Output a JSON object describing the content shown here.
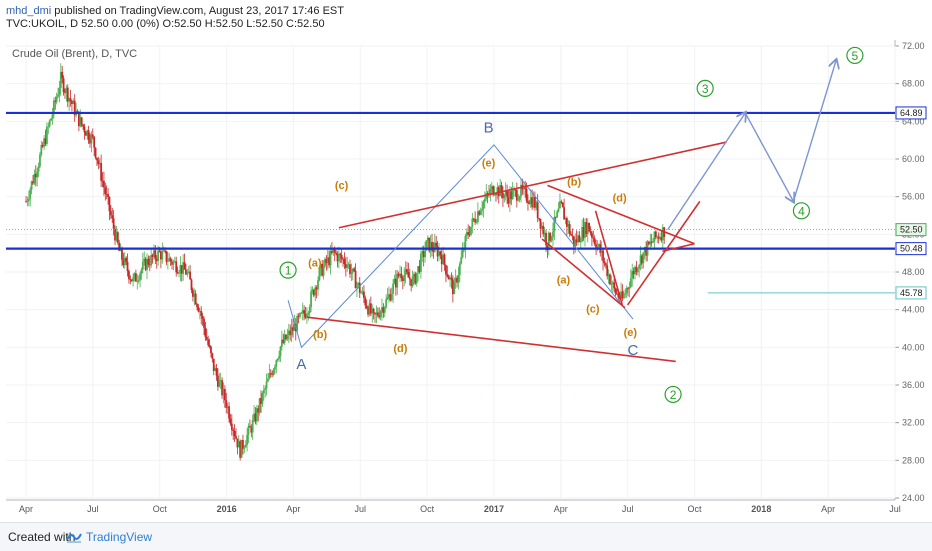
{
  "header": {
    "author": "mhd_dmi",
    "published": " published on TradingView.com, August 23, 2017 17:46 EST",
    "symbol_line": "TVC:UKOIL, D  52.50 0.00 (0%) O:52.50 H:52.50 L:52.50 C:52.50"
  },
  "footer": {
    "created_with": "Created with",
    "brand": "TradingView"
  },
  "colors": {
    "up": "#4caf50",
    "down": "#c62828",
    "hline": "#1a2fd6",
    "trend": "#d32f2f",
    "wave_blue": "#7f95d1",
    "label_orange": "#c87d0b",
    "label_green": "#2ca02c",
    "label_blue": "#4a6aa8",
    "teal": "#66c2c2"
  },
  "chart_data": {
    "type": "candlestick",
    "title": "Crude Oil (Brent), D, TVC",
    "ylim": [
      24,
      72
    ],
    "y_ticks": [
      "72.00",
      "68.00",
      "64.00",
      "60.00",
      "56.00",
      "52.00",
      "48.00",
      "44.00",
      "40.00",
      "36.00",
      "32.00",
      "28.00",
      "24.00"
    ],
    "x_ticks": [
      "Apr",
      "Jul",
      "Oct",
      "2016",
      "Apr",
      "Jul",
      "Oct",
      "2017",
      "Apr",
      "Jul",
      "Oct",
      "2018",
      "Apr",
      "Jul"
    ],
    "price_path": [
      {
        "t": 2015.25,
        "v": 55.5
      },
      {
        "t": 2015.3,
        "v": 60
      },
      {
        "t": 2015.35,
        "v": 65
      },
      {
        "t": 2015.38,
        "v": 68.5
      },
      {
        "t": 2015.42,
        "v": 66
      },
      {
        "t": 2015.45,
        "v": 64
      },
      {
        "t": 2015.5,
        "v": 62
      },
      {
        "t": 2015.55,
        "v": 56
      },
      {
        "t": 2015.6,
        "v": 50
      },
      {
        "t": 2015.65,
        "v": 47
      },
      {
        "t": 2015.7,
        "v": 49
      },
      {
        "t": 2015.75,
        "v": 50
      },
      {
        "t": 2015.8,
        "v": 49
      },
      {
        "t": 2015.85,
        "v": 48
      },
      {
        "t": 2015.9,
        "v": 44
      },
      {
        "t": 2015.95,
        "v": 38
      },
      {
        "t": 2016.0,
        "v": 34
      },
      {
        "t": 2016.05,
        "v": 29
      },
      {
        "t": 2016.1,
        "v": 32
      },
      {
        "t": 2016.15,
        "v": 36
      },
      {
        "t": 2016.2,
        "v": 40
      },
      {
        "t": 2016.25,
        "v": 42
      },
      {
        "t": 2016.3,
        "v": 44
      },
      {
        "t": 2016.35,
        "v": 48
      },
      {
        "t": 2016.4,
        "v": 50
      },
      {
        "t": 2016.45,
        "v": 49
      },
      {
        "t": 2016.5,
        "v": 46
      },
      {
        "t": 2016.55,
        "v": 43
      },
      {
        "t": 2016.6,
        "v": 45
      },
      {
        "t": 2016.65,
        "v": 48
      },
      {
        "t": 2016.7,
        "v": 47
      },
      {
        "t": 2016.75,
        "v": 51
      },
      {
        "t": 2016.8,
        "v": 50
      },
      {
        "t": 2016.85,
        "v": 46
      },
      {
        "t": 2016.9,
        "v": 52
      },
      {
        "t": 2016.95,
        "v": 55
      },
      {
        "t": 2017.0,
        "v": 57
      },
      {
        "t": 2017.05,
        "v": 56
      },
      {
        "t": 2017.1,
        "v": 56.5
      },
      {
        "t": 2017.15,
        "v": 55.5
      },
      {
        "t": 2017.2,
        "v": 51
      },
      {
        "t": 2017.25,
        "v": 55
      },
      {
        "t": 2017.3,
        "v": 51
      },
      {
        "t": 2017.35,
        "v": 53
      },
      {
        "t": 2017.4,
        "v": 50
      },
      {
        "t": 2017.45,
        "v": 46
      },
      {
        "t": 2017.48,
        "v": 45
      },
      {
        "t": 2017.52,
        "v": 48
      },
      {
        "t": 2017.56,
        "v": 50
      },
      {
        "t": 2017.6,
        "v": 51.5
      },
      {
        "t": 2017.64,
        "v": 52.5
      }
    ],
    "horizontal_lines": [
      {
        "value": 64.89,
        "label": "64.89",
        "color": "#1a2fd6"
      },
      {
        "value": 50.48,
        "label": "50.48",
        "color": "#1a2fd6"
      },
      {
        "value": 45.78,
        "label": "45.78",
        "color": "#66c2c2"
      }
    ],
    "current_price": {
      "value": 52.5,
      "label": "52.50"
    },
    "trendlines": [
      {
        "from": [
          2016.42,
          52.7
        ],
        "to": [
          2017.87,
          61.8
        ]
      },
      {
        "from": [
          2016.3,
          43.2
        ],
        "to": [
          2017.68,
          38.5
        ]
      },
      {
        "from": [
          2017.2,
          57.2
        ],
        "to": [
          2017.75,
          51
        ]
      },
      {
        "from": [
          2017.18,
          51.5
        ],
        "to": [
          2017.49,
          44.2
        ]
      },
      {
        "from": [
          2017.5,
          44.5
        ],
        "to": [
          2017.77,
          55.5
        ]
      },
      {
        "from": [
          2017.48,
          44.5
        ],
        "to": [
          2017.38,
          54.5
        ]
      },
      {
        "from": [
          2017.75,
          51
        ],
        "to": [
          2017.63,
          50.2
        ]
      }
    ],
    "wave_lines": [
      {
        "from": [
          2016.23,
          45
        ],
        "to": [
          2016.28,
          40
        ],
        "to2": [
          2017.0,
          61.5
        ],
        "to3": [
          2017.52,
          43
        ]
      }
    ],
    "projection": [
      {
        "t": 2017.65,
        "v": 52.5
      },
      {
        "t": 2017.94,
        "v": 64.89
      },
      {
        "t": 2018.12,
        "v": 55.5
      },
      {
        "t": 2018.28,
        "v": 70.5
      }
    ],
    "labels": [
      {
        "text": "(a)",
        "t": 2016.33,
        "v": 48.6,
        "color": "orange"
      },
      {
        "text": "(b)",
        "t": 2016.35,
        "v": 41.0,
        "color": "orange"
      },
      {
        "text": "(c)",
        "t": 2016.43,
        "v": 56.8,
        "color": "orange"
      },
      {
        "text": "(d)",
        "t": 2016.65,
        "v": 39.5,
        "color": "orange"
      },
      {
        "text": "(e)",
        "t": 2016.98,
        "v": 59.2,
        "color": "orange"
      },
      {
        "text": "(b)",
        "t": 2017.3,
        "v": 57.2,
        "color": "orange"
      },
      {
        "text": "(d)",
        "t": 2017.47,
        "v": 55.5,
        "color": "orange"
      },
      {
        "text": "(a)",
        "t": 2017.26,
        "v": 46.8,
        "color": "orange"
      },
      {
        "text": "(c)",
        "t": 2017.37,
        "v": 43.7,
        "color": "orange"
      },
      {
        "text": "(e)",
        "t": 2017.51,
        "v": 41.2,
        "color": "orange"
      },
      {
        "text": "A",
        "t": 2016.28,
        "v": 37.7,
        "color": "blue"
      },
      {
        "text": "B",
        "t": 2016.98,
        "v": 62.8,
        "color": "blue"
      },
      {
        "text": "C",
        "t": 2017.52,
        "v": 39.2,
        "color": "blue"
      }
    ],
    "wave_circles": [
      {
        "text": "1",
        "t": 2016.23,
        "v": 48.2
      },
      {
        "text": "2",
        "t": 2017.67,
        "v": 35.0
      },
      {
        "text": "3",
        "t": 2017.79,
        "v": 67.5
      },
      {
        "text": "4",
        "t": 2018.15,
        "v": 54.5
      },
      {
        "text": "5",
        "t": 2018.35,
        "v": 71.0
      }
    ]
  }
}
